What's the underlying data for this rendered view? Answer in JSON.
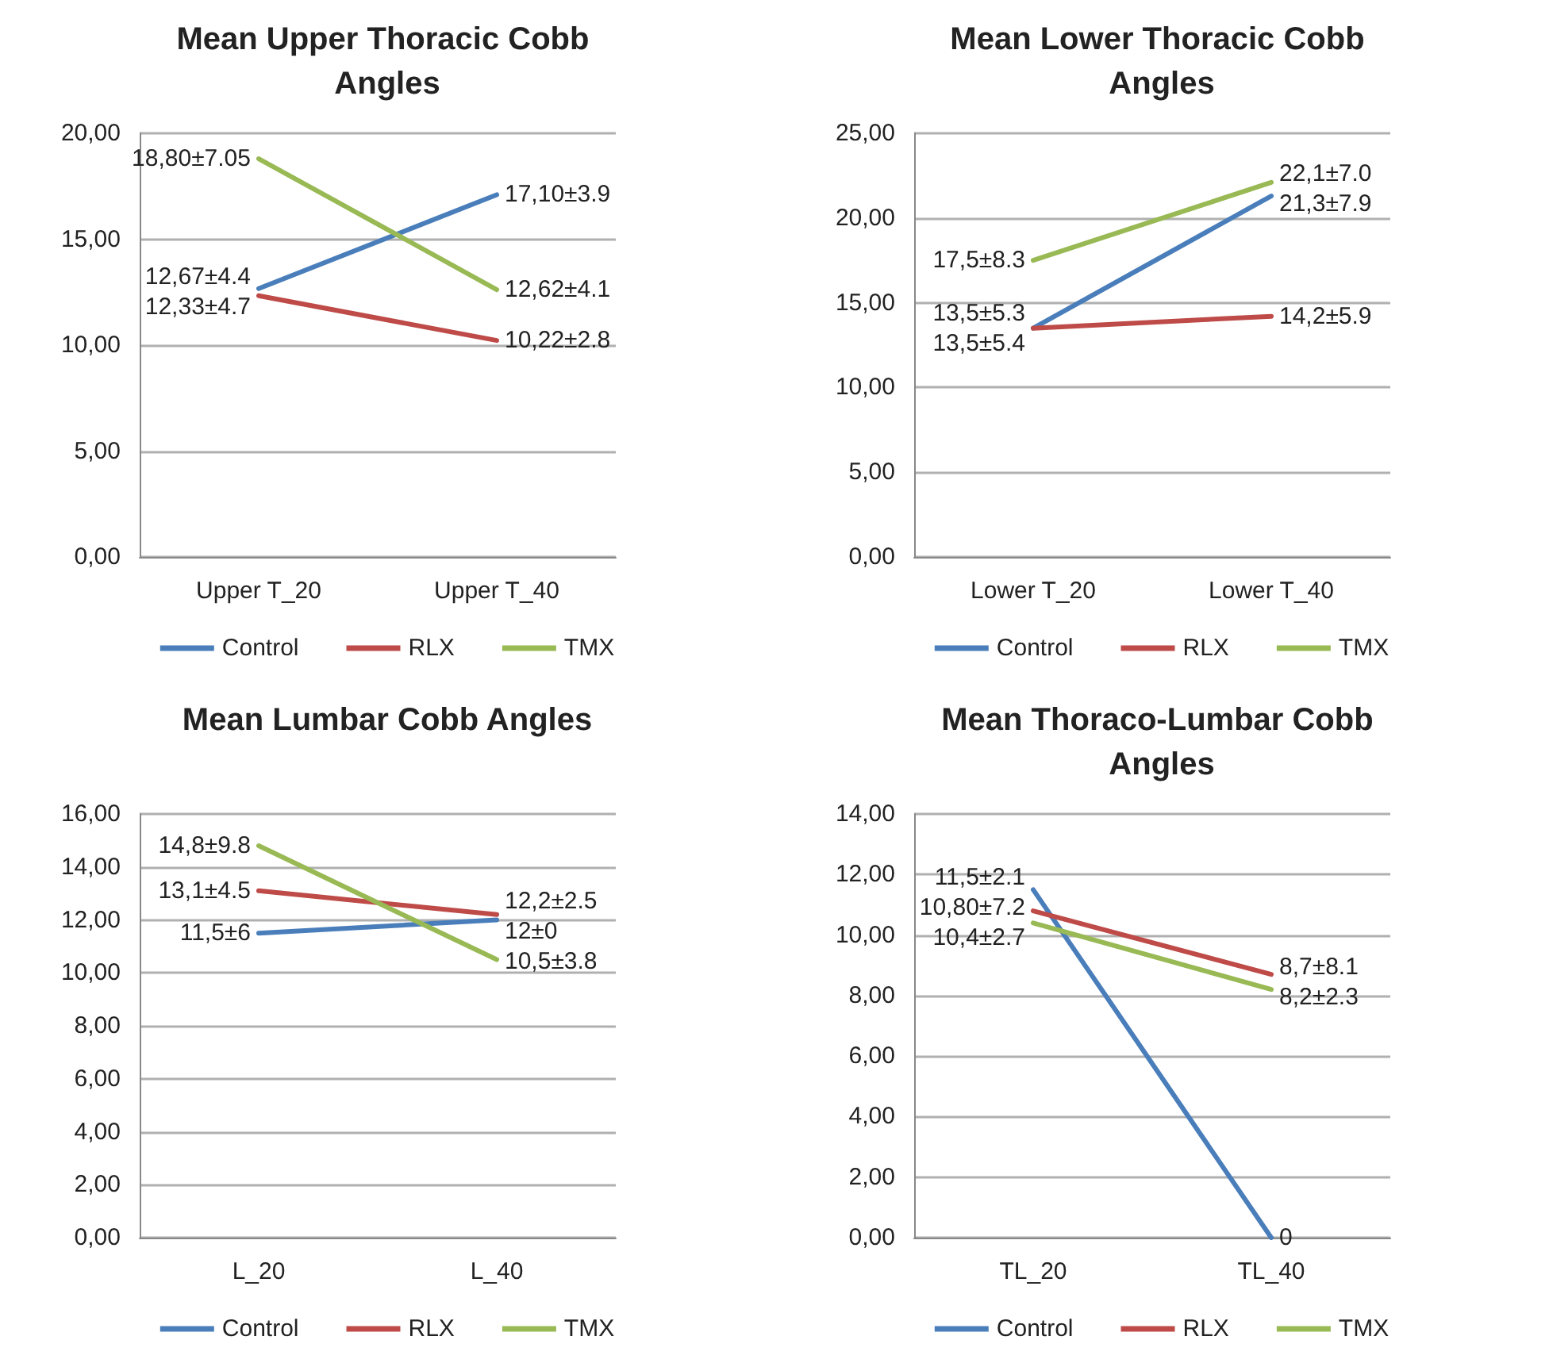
{
  "chart_data": [
    {
      "type": "line",
      "title": "Mean Upper Thoracic Cobb Angles",
      "categories": [
        "Upper T_20",
        "Upper T_40"
      ],
      "ylim": [
        0,
        20
      ],
      "yticks": [
        {
          "value": 0,
          "label": "0,00"
        },
        {
          "value": 5,
          "label": "5,00"
        },
        {
          "value": 10,
          "label": "10,00"
        },
        {
          "value": 15,
          "label": "15,00"
        },
        {
          "value": 20,
          "label": "20,00"
        }
      ],
      "grid": "y",
      "legend": "bottom",
      "marker": "none",
      "series": [
        {
          "name": "Control",
          "color": "#4a7ebb",
          "values": [
            12.67,
            17.1
          ],
          "value_labels": [
            "12,67±4.4",
            "17,10±3.9"
          ]
        },
        {
          "name": "RLX",
          "color": "#be4b48",
          "values": [
            12.33,
            10.22
          ],
          "value_labels": [
            "12,33±4.7",
            "10,22±2.8"
          ]
        },
        {
          "name": "TMX",
          "color": "#98b954",
          "values": [
            18.8,
            12.62
          ],
          "value_labels": [
            "18,80±7.05",
            "12,62±4.1"
          ]
        }
      ]
    },
    {
      "type": "line",
      "title": "Mean Lower Thoracic Cobb Angles",
      "categories": [
        "Lower T_20",
        "Lower T_40"
      ],
      "ylim": [
        0,
        25
      ],
      "yticks": [
        {
          "value": 0,
          "label": "0,00"
        },
        {
          "value": 5,
          "label": "5,00"
        },
        {
          "value": 10,
          "label": "10,00"
        },
        {
          "value": 15,
          "label": "15,00"
        },
        {
          "value": 20,
          "label": "20,00"
        },
        {
          "value": 25,
          "label": "25,00"
        }
      ],
      "grid": "y",
      "legend": "bottom",
      "marker": "none",
      "series": [
        {
          "name": "Control",
          "color": "#4a7ebb",
          "values": [
            13.5,
            21.3
          ],
          "value_labels": [
            "13,5±5.3",
            "21,3±7.9"
          ]
        },
        {
          "name": "RLX",
          "color": "#be4b48",
          "values": [
            13.5,
            14.2
          ],
          "value_labels": [
            "13,5±5.4",
            "14,2±5.9"
          ]
        },
        {
          "name": "TMX",
          "color": "#98b954",
          "values": [
            17.5,
            22.1
          ],
          "value_labels": [
            "17,5±8.3",
            "22,1±7.0"
          ]
        }
      ]
    },
    {
      "type": "line",
      "title": "Mean Lumbar Cobb Angles",
      "categories": [
        "L_20",
        "L_40"
      ],
      "ylim": [
        0,
        16
      ],
      "yticks": [
        {
          "value": 0,
          "label": "0,00"
        },
        {
          "value": 2,
          "label": "2,00"
        },
        {
          "value": 4,
          "label": "4,00"
        },
        {
          "value": 6,
          "label": "6,00"
        },
        {
          "value": 8,
          "label": "8,00"
        },
        {
          "value": 10,
          "label": "10,00"
        },
        {
          "value": 12,
          "label": "12,00"
        },
        {
          "value": 14,
          "label": "14,00"
        },
        {
          "value": 16,
          "label": "16,00"
        }
      ],
      "grid": "y",
      "legend": "bottom",
      "marker": "none",
      "series": [
        {
          "name": "Control",
          "color": "#4a7ebb",
          "values": [
            11.5,
            12
          ],
          "value_labels": [
            "11,5±6",
            "12±0"
          ]
        },
        {
          "name": "RLX",
          "color": "#be4b48",
          "values": [
            13.1,
            12.2
          ],
          "value_labels": [
            "13,1±4.5",
            "12,2±2.5"
          ]
        },
        {
          "name": "TMX",
          "color": "#98b954",
          "values": [
            14.8,
            10.5
          ],
          "value_labels": [
            "14,8±9.8",
            "10,5±3.8"
          ]
        }
      ]
    },
    {
      "type": "line",
      "title": "Mean Thoraco-Lumbar Cobb Angles",
      "categories": [
        "TL_20",
        "TL_40"
      ],
      "ylim": [
        0,
        14
      ],
      "yticks": [
        {
          "value": 0,
          "label": "0,00"
        },
        {
          "value": 2,
          "label": "2,00"
        },
        {
          "value": 4,
          "label": "4,00"
        },
        {
          "value": 6,
          "label": "6,00"
        },
        {
          "value": 8,
          "label": "8,00"
        },
        {
          "value": 10,
          "label": "10,00"
        },
        {
          "value": 12,
          "label": "12,00"
        },
        {
          "value": 14,
          "label": "14,00"
        }
      ],
      "grid": "y",
      "legend": "bottom",
      "marker": "none",
      "series": [
        {
          "name": "Control",
          "color": "#4a7ebb",
          "values": [
            11.5,
            0
          ],
          "value_labels": [
            "11,5±2.1",
            "0"
          ]
        },
        {
          "name": "RLX",
          "color": "#be4b48",
          "values": [
            10.8,
            8.7
          ],
          "value_labels": [
            "10,80±7.2",
            "8,7±8.1"
          ]
        },
        {
          "name": "TMX",
          "color": "#98b954",
          "values": [
            10.4,
            8.2
          ],
          "value_labels": [
            "10,4±2.7",
            "8,2±2.3"
          ]
        }
      ]
    }
  ]
}
